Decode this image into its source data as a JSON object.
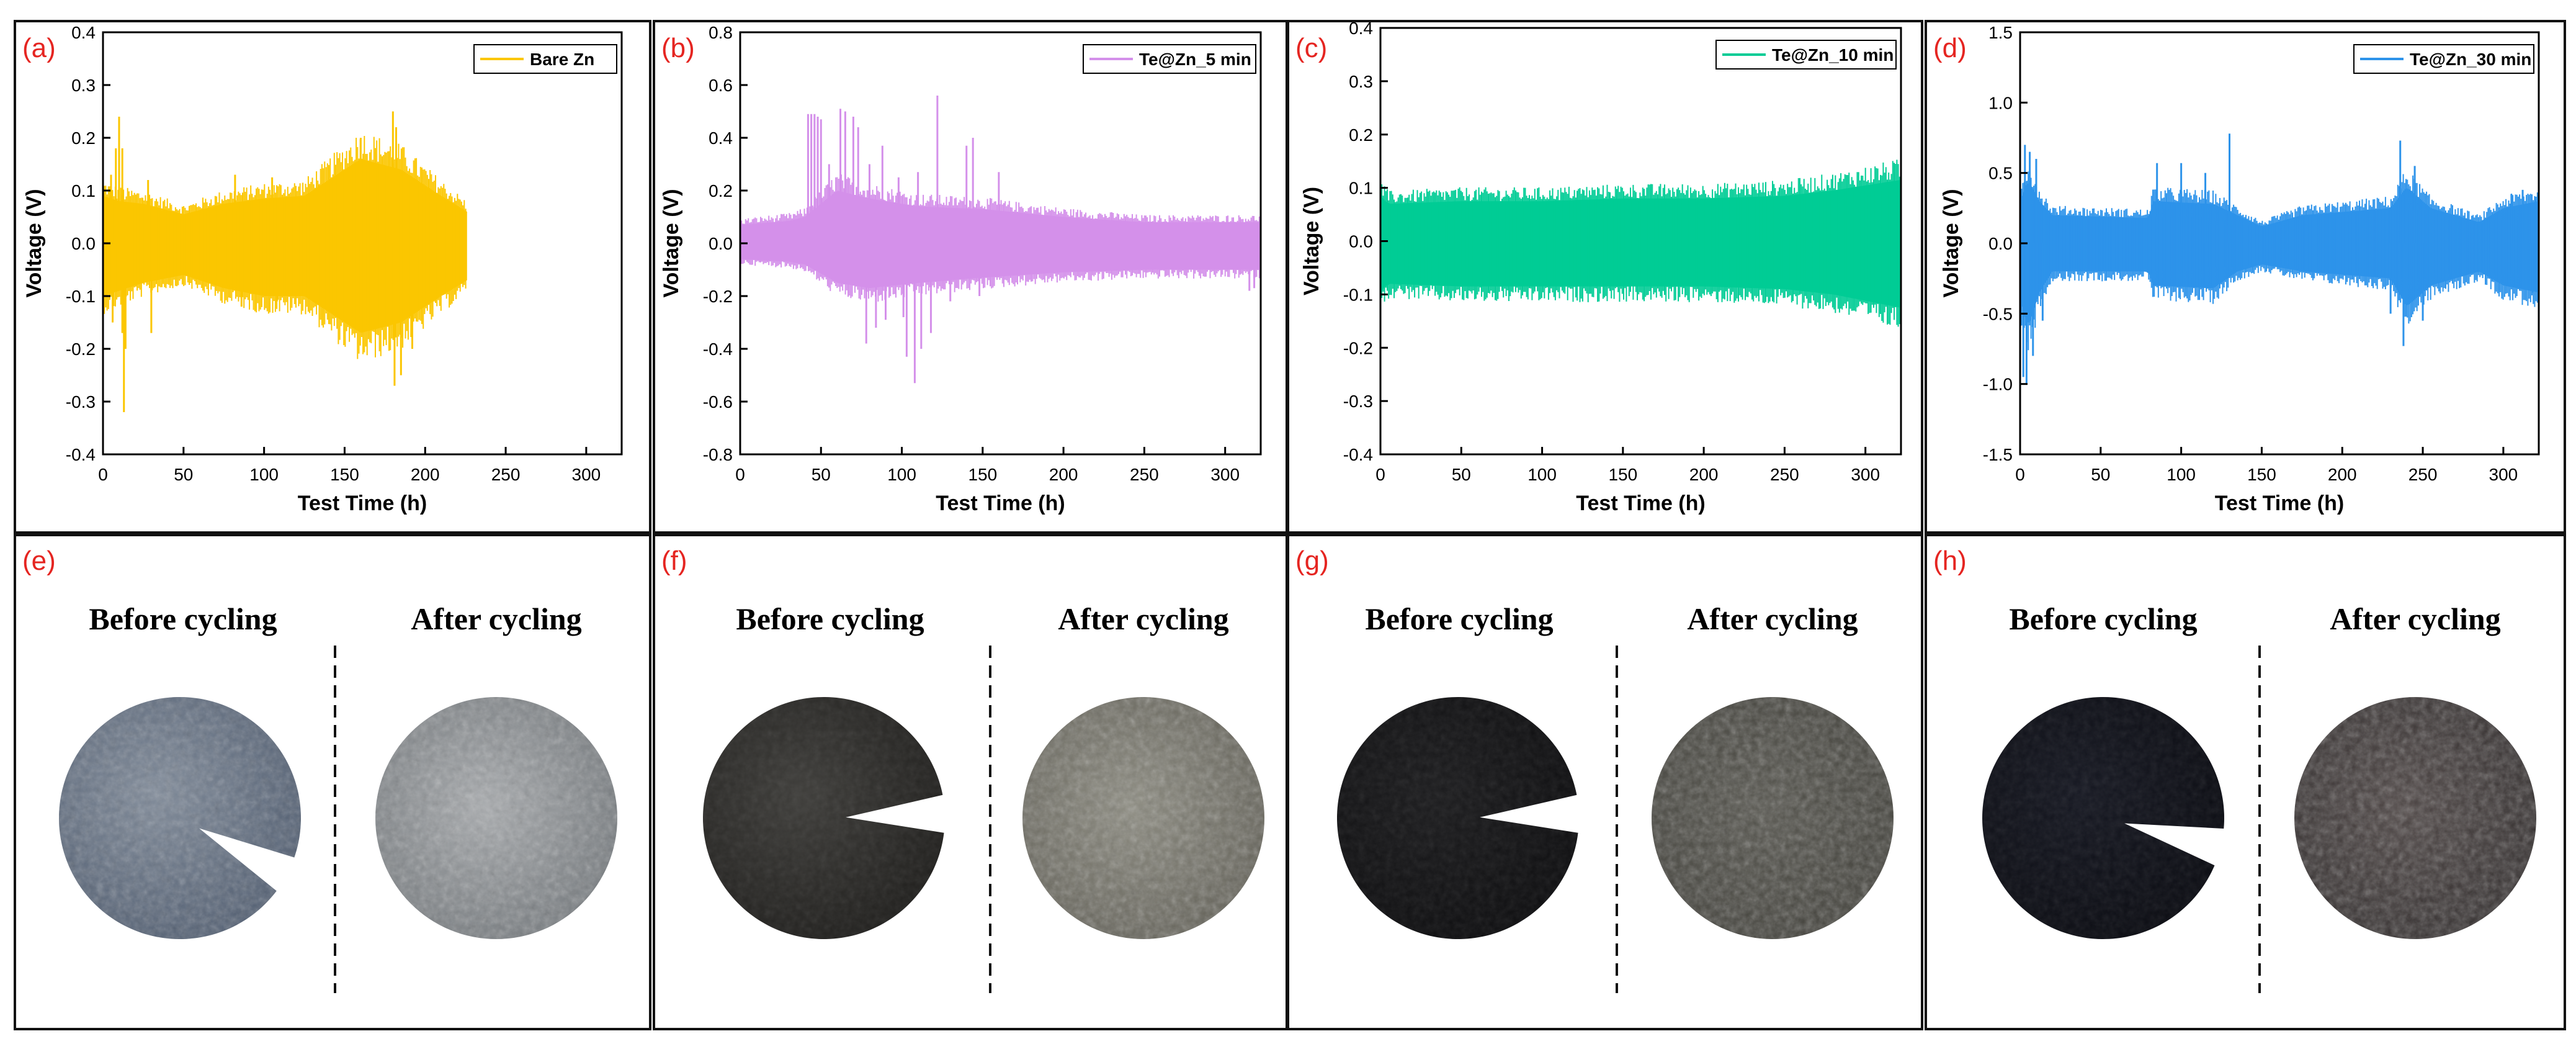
{
  "colors": {
    "panel_label": "#e52521",
    "axis": "#000000",
    "bare_zn": "#fbc600",
    "te5": "#d490ea",
    "te10": "#00cc95",
    "te30": "#2d93ea"
  },
  "chart_data": [
    {
      "type": "line",
      "panel_label": "(a)",
      "title": "",
      "xlabel": "Test Time (h)",
      "ylabel": "Voltage (V)",
      "xlim": [
        0,
        322
      ],
      "ylim": [
        -0.4,
        0.4
      ],
      "x_ticks": [
        "0",
        "50",
        "100",
        "150",
        "200",
        "250",
        "300"
      ],
      "y_ticks": [
        "-0.4",
        "-0.3",
        "-0.2",
        "-0.1",
        "0.0",
        "0.1",
        "0.2",
        "0.3",
        "0.4"
      ],
      "legend": "Bare Zn",
      "legend_position": "top-right",
      "series": [
        {
          "name": "Bare Zn",
          "color": "#fbc600",
          "x_end": 226,
          "upper_envelope": [
            [
              0,
              0.09
            ],
            [
              10,
              0.08
            ],
            [
              25,
              0.075
            ],
            [
              50,
              0.055
            ],
            [
              75,
              0.075
            ],
            [
              100,
              0.085
            ],
            [
              125,
              0.09
            ],
            [
              140,
              0.12
            ],
            [
              160,
              0.16
            ],
            [
              185,
              0.14
            ],
            [
              210,
              0.09
            ],
            [
              226,
              0.06
            ]
          ],
          "lower_envelope": [
            [
              0,
              -0.1
            ],
            [
              10,
              -0.09
            ],
            [
              25,
              -0.075
            ],
            [
              50,
              -0.06
            ],
            [
              75,
              -0.085
            ],
            [
              100,
              -0.1
            ],
            [
              125,
              -0.1
            ],
            [
              140,
              -0.13
            ],
            [
              160,
              -0.17
            ],
            [
              185,
              -0.15
            ],
            [
              210,
              -0.1
            ],
            [
              226,
              -0.07
            ]
          ],
          "spikes": [
            [
              5,
              0.13
            ],
            [
              6,
              -0.15
            ],
            [
              8,
              0.18
            ],
            [
              10,
              0.24
            ],
            [
              12,
              0.18
            ],
            [
              13,
              -0.32
            ],
            [
              12,
              -0.17
            ],
            [
              14,
              -0.2
            ],
            [
              28,
              0.12
            ],
            [
              30,
              -0.17
            ],
            [
              82,
              0.13
            ],
            [
              86,
              -0.12
            ],
            [
              105,
              0.125
            ],
            [
              108,
              -0.11
            ],
            [
              134,
              0.11
            ],
            [
              150,
              -0.14
            ],
            [
              160,
              0.2
            ],
            [
              170,
              -0.16
            ],
            [
              180,
              0.25
            ],
            [
              182,
              0.22
            ],
            [
              181,
              -0.27
            ],
            [
              185,
              -0.25
            ],
            [
              192,
              -0.2
            ]
          ]
        }
      ]
    },
    {
      "type": "line",
      "panel_label": "(b)",
      "title": "",
      "xlabel": "Test Time (h)",
      "ylabel": "Voltage (V)",
      "xlim": [
        0,
        322
      ],
      "ylim": [
        -0.8,
        0.8
      ],
      "x_ticks": [
        "0",
        "50",
        "100",
        "150",
        "200",
        "250",
        "300"
      ],
      "y_ticks": [
        "-0.8",
        "-0.6",
        "-0.4",
        "-0.2",
        "0.0",
        "0.2",
        "0.4",
        "0.6",
        "0.8"
      ],
      "legend": "Te@Zn_5 min",
      "legend_position": "top-right",
      "series": [
        {
          "name": "Te@Zn_5 min",
          "color": "#d490ea",
          "x_end": 322,
          "upper_envelope": [
            [
              0,
              0.07
            ],
            [
              30,
              0.085
            ],
            [
              40,
              0.1
            ],
            [
              60,
              0.2
            ],
            [
              80,
              0.17
            ],
            [
              110,
              0.14
            ],
            [
              150,
              0.13
            ],
            [
              200,
              0.1
            ],
            [
              250,
              0.08
            ],
            [
              300,
              0.08
            ],
            [
              322,
              0.08
            ]
          ],
          "lower_envelope": [
            [
              0,
              -0.06
            ],
            [
              30,
              -0.07
            ],
            [
              40,
              -0.08
            ],
            [
              60,
              -0.15
            ],
            [
              80,
              -0.17
            ],
            [
              110,
              -0.15
            ],
            [
              150,
              -0.13
            ],
            [
              200,
              -0.11
            ],
            [
              250,
              -0.1
            ],
            [
              300,
              -0.1
            ],
            [
              322,
              -0.1
            ]
          ],
          "spikes": [
            [
              42,
              0.49
            ],
            [
              44,
              0.49
            ],
            [
              46,
              0.49
            ],
            [
              48,
              0.48
            ],
            [
              50,
              0.47
            ],
            [
              55,
              0.3
            ],
            [
              62,
              0.51
            ],
            [
              65,
              0.5
            ],
            [
              70,
              0.48
            ],
            [
              73,
              0.44
            ],
            [
              80,
              0.3
            ],
            [
              88,
              0.37
            ],
            [
              98,
              0.25
            ],
            [
              110,
              0.27
            ],
            [
              122,
              0.56
            ],
            [
              140,
              0.37
            ],
            [
              144,
              0.4
            ],
            [
              160,
              0.27
            ],
            [
              78,
              -0.38
            ],
            [
              84,
              -0.32
            ],
            [
              90,
              -0.29
            ],
            [
              101,
              -0.28
            ],
            [
              103,
              -0.43
            ],
            [
              108,
              -0.53
            ],
            [
              112,
              -0.4
            ],
            [
              118,
              -0.34
            ],
            [
              130,
              -0.22
            ],
            [
              148,
              -0.2
            ],
            [
              315,
              -0.18
            ],
            [
              318,
              -0.17
            ]
          ]
        }
      ]
    },
    {
      "type": "line",
      "panel_label": "(c)",
      "title": "",
      "xlabel": "Test Time (h)",
      "ylabel": "Voltage (V)",
      "xlim": [
        0,
        322
      ],
      "ylim": [
        -0.4,
        0.4
      ],
      "x_ticks": [
        "0",
        "50",
        "100",
        "150",
        "200",
        "250",
        "300"
      ],
      "y_ticks": [
        "-0.4",
        "-0.3",
        "-0.2",
        "-0.1",
        "0.0",
        "0.1",
        "0.2",
        "0.3",
        "0.4"
      ],
      "legend": "Te@Zn_10 min",
      "legend_position": "top-right",
      "series": [
        {
          "name": "Te@Zn_10 min",
          "color": "#00cc95",
          "x_end": 322,
          "upper_envelope": [
            [
              0,
              0.085
            ],
            [
              5,
              0.07
            ],
            [
              50,
              0.075
            ],
            [
              100,
              0.075
            ],
            [
              150,
              0.08
            ],
            [
              200,
              0.08
            ],
            [
              250,
              0.085
            ],
            [
              280,
              0.095
            ],
            [
              322,
              0.115
            ]
          ],
          "lower_envelope": [
            [
              0,
              -0.095
            ],
            [
              5,
              -0.08
            ],
            [
              50,
              -0.085
            ],
            [
              100,
              -0.085
            ],
            [
              150,
              -0.085
            ],
            [
              200,
              -0.085
            ],
            [
              250,
              -0.09
            ],
            [
              280,
              -0.1
            ],
            [
              322,
              -0.125
            ]
          ],
          "spikes": []
        }
      ]
    },
    {
      "type": "line",
      "panel_label": "(d)",
      "title": "",
      "xlabel": "Test Time (h)",
      "ylabel": "Voltage (V)",
      "xlim": [
        0,
        322
      ],
      "ylim": [
        -1.5,
        1.5
      ],
      "x_ticks": [
        "0",
        "50",
        "100",
        "150",
        "200",
        "250",
        "300"
      ],
      "y_ticks": [
        "-1.5",
        "-1.0",
        "-0.5",
        "0.0",
        "0.5",
        "1.0",
        "1.5"
      ],
      "legend": "Te@Zn_30 min",
      "legend_position": "top-right",
      "series": [
        {
          "name": "Te@Zn_30 min",
          "color": "#2d93ea",
          "x_end": 322,
          "upper_envelope": [
            [
              0,
              0.3
            ],
            [
              5,
              0.45
            ],
            [
              12,
              0.3
            ],
            [
              20,
              0.2
            ],
            [
              80,
              0.18
            ],
            [
              82,
              0.3
            ],
            [
              120,
              0.28
            ],
            [
              135,
              0.2
            ],
            [
              150,
              0.12
            ],
            [
              175,
              0.2
            ],
            [
              230,
              0.25
            ],
            [
              240,
              0.4
            ],
            [
              255,
              0.25
            ],
            [
              285,
              0.15
            ],
            [
              300,
              0.25
            ],
            [
              322,
              0.3
            ]
          ],
          "lower_envelope": [
            [
              0,
              -0.4
            ],
            [
              5,
              -0.6
            ],
            [
              12,
              -0.35
            ],
            [
              20,
              -0.2
            ],
            [
              80,
              -0.2
            ],
            [
              82,
              -0.3
            ],
            [
              120,
              -0.32
            ],
            [
              135,
              -0.2
            ],
            [
              150,
              -0.15
            ],
            [
              175,
              -0.2
            ],
            [
              230,
              -0.25
            ],
            [
              240,
              -0.45
            ],
            [
              255,
              -0.3
            ],
            [
              285,
              -0.2
            ],
            [
              300,
              -0.3
            ],
            [
              322,
              -0.35
            ]
          ],
          "spikes": [
            [
              3,
              0.7
            ],
            [
              6,
              0.65
            ],
            [
              10,
              0.6
            ],
            [
              2,
              -0.95
            ],
            [
              4,
              -1.0
            ],
            [
              8,
              -0.8
            ],
            [
              14,
              -0.55
            ],
            [
              85,
              0.57
            ],
            [
              100,
              0.57
            ],
            [
              115,
              0.5
            ],
            [
              130,
              0.78
            ],
            [
              230,
              -0.5
            ],
            [
              236,
              0.73
            ],
            [
              238,
              -0.73
            ],
            [
              245,
              0.55
            ],
            [
              250,
              -0.55
            ],
            [
              305,
              0.35
            ],
            [
              312,
              0.38
            ],
            [
              318,
              -0.35
            ],
            [
              320,
              0.33
            ]
          ]
        }
      ]
    }
  ],
  "photos": [
    {
      "panel_label": "(e)",
      "before_label": "Before cycling",
      "after_label": "After cycling"
    },
    {
      "panel_label": "(f)",
      "before_label": "Before cycling",
      "after_label": "After cycling"
    },
    {
      "panel_label": "(g)",
      "before_label": "Before cycling",
      "after_label": "After cycling"
    },
    {
      "panel_label": "(h)",
      "before_label": "Before cycling",
      "after_label": "After cycling"
    }
  ]
}
